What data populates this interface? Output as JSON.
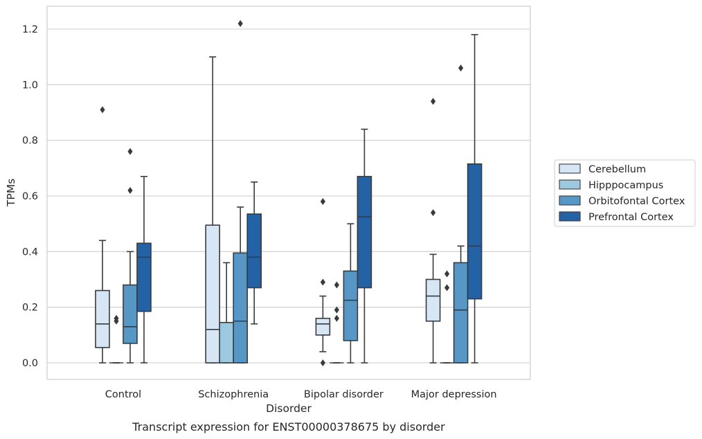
{
  "chart_data": {
    "type": "box",
    "caption": "Transcript expression for ENST00000378675 by disorder",
    "xlabel": "Disorder",
    "ylabel": "TPMs",
    "ylim": [
      -0.06,
      1.28
    ],
    "yticks": [
      0.0,
      0.2,
      0.4,
      0.6,
      0.8,
      1.0,
      1.2
    ],
    "ytick_labels": [
      "0.0",
      "0.2",
      "0.4",
      "0.6",
      "0.8",
      "1.0",
      "1.2"
    ],
    "grid": "horizontal",
    "legend_position": "right",
    "categories": [
      "Control",
      "Schizophrenia",
      "Bipolar disorder",
      "Major depression"
    ],
    "series": [
      {
        "name": "Cerebellum",
        "color": "#d6e6f4",
        "boxes": [
          {
            "q1": 0.055,
            "median": 0.14,
            "q3": 0.26,
            "whisker_low": 0.0,
            "whisker_high": 0.44,
            "outliers": [
              0.91
            ]
          },
          {
            "q1": 0.0,
            "median": 0.12,
            "q3": 0.495,
            "whisker_low": 0.0,
            "whisker_high": 1.1,
            "outliers": []
          },
          {
            "q1": 0.1,
            "median": 0.14,
            "q3": 0.16,
            "whisker_low": 0.04,
            "whisker_high": 0.24,
            "outliers": [
              0.58,
              0.29,
              0.0
            ]
          },
          {
            "q1": 0.15,
            "median": 0.24,
            "q3": 0.3,
            "whisker_low": 0.0,
            "whisker_high": 0.39,
            "outliers": [
              0.94,
              0.54
            ]
          }
        ]
      },
      {
        "name": "Hipppocampus",
        "color": "#9dc9e0",
        "boxes": [
          {
            "q1": 0.0,
            "median": 0.0,
            "q3": 0.0,
            "whisker_low": 0.0,
            "whisker_high": 0.0,
            "outliers": [
              0.16,
              0.15
            ]
          },
          {
            "q1": 0.0,
            "median": 0.145,
            "q3": 0.145,
            "whisker_low": 0.0,
            "whisker_high": 0.36,
            "outliers": []
          },
          {
            "q1": 0.0,
            "median": 0.0,
            "q3": 0.0,
            "whisker_low": 0.0,
            "whisker_high": 0.0,
            "outliers": [
              0.28,
              0.19,
              0.16
            ]
          },
          {
            "q1": 0.0,
            "median": 0.0,
            "q3": 0.0,
            "whisker_low": 0.0,
            "whisker_high": 0.0,
            "outliers": [
              0.32,
              0.27
            ]
          }
        ]
      },
      {
        "name": "Orbitofontal Cortex",
        "color": "#5697c6",
        "boxes": [
          {
            "q1": 0.07,
            "median": 0.13,
            "q3": 0.28,
            "whisker_low": 0.0,
            "whisker_high": 0.4,
            "outliers": [
              0.76,
              0.62
            ]
          },
          {
            "q1": 0.0,
            "median": 0.15,
            "q3": 0.395,
            "whisker_low": 0.0,
            "whisker_high": 0.56,
            "outliers": [
              1.22
            ]
          },
          {
            "q1": 0.08,
            "median": 0.225,
            "q3": 0.33,
            "whisker_low": 0.0,
            "whisker_high": 0.5,
            "outliers": []
          },
          {
            "q1": 0.0,
            "median": 0.19,
            "q3": 0.36,
            "whisker_low": 0.0,
            "whisker_high": 0.42,
            "outliers": [
              1.06
            ]
          }
        ]
      },
      {
        "name": "Prefrontal Cortex",
        "color": "#2462a6",
        "boxes": [
          {
            "q1": 0.185,
            "median": 0.38,
            "q3": 0.43,
            "whisker_low": 0.0,
            "whisker_high": 0.67,
            "outliers": []
          },
          {
            "q1": 0.27,
            "median": 0.38,
            "q3": 0.535,
            "whisker_low": 0.14,
            "whisker_high": 0.65,
            "outliers": []
          },
          {
            "q1": 0.27,
            "median": 0.525,
            "q3": 0.67,
            "whisker_low": 0.0,
            "whisker_high": 0.84,
            "outliers": []
          },
          {
            "q1": 0.23,
            "median": 0.42,
            "q3": 0.715,
            "whisker_low": 0.0,
            "whisker_high": 1.18,
            "outliers": []
          }
        ]
      }
    ]
  }
}
